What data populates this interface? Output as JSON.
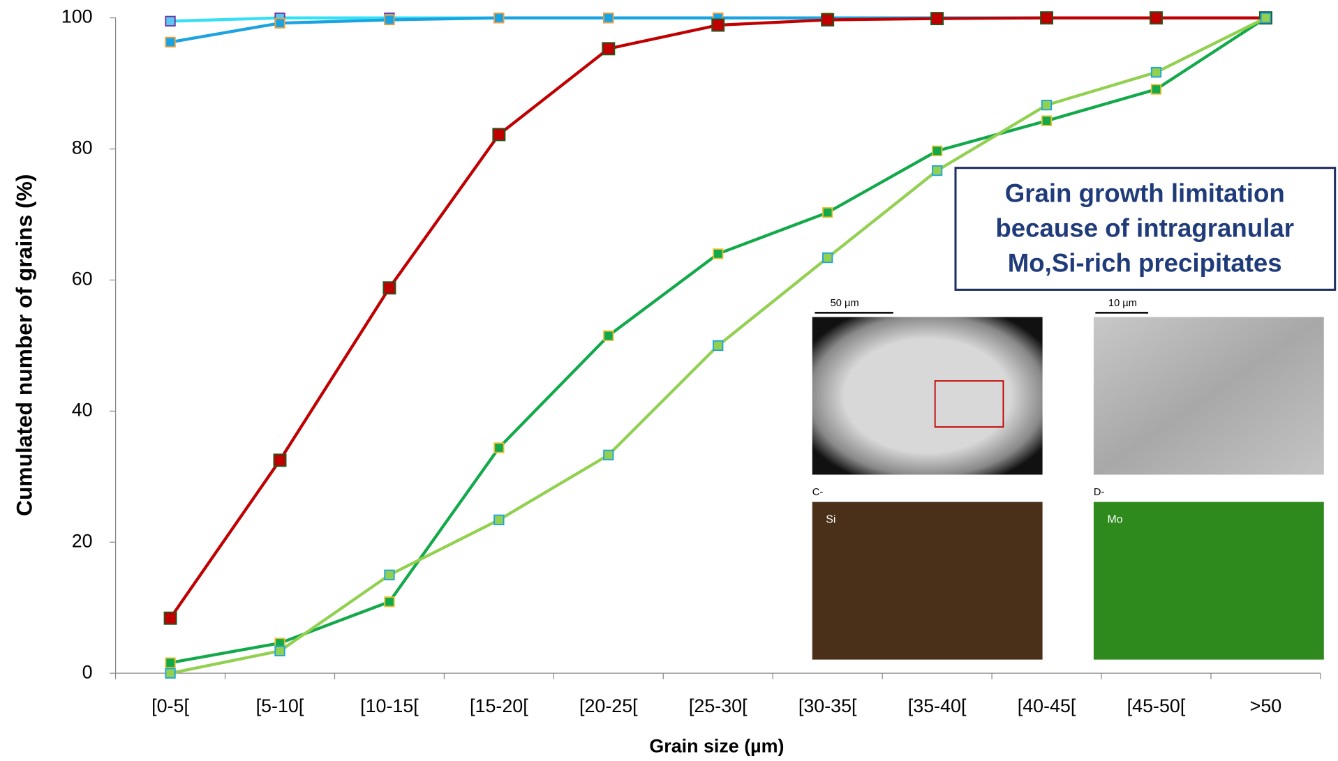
{
  "chart_data": {
    "type": "line",
    "x_label": "Grain size (µm)",
    "y_label": "Cumulated number of grains (%)",
    "categories": [
      "[0-5[",
      "[5-10[",
      "[10-15[",
      "[15-20[",
      "[20-25[",
      "[25-30[",
      "[30-35[",
      "[35-40[",
      "[40-45[",
      "[45-50[",
      ">50"
    ],
    "ylim": [
      0,
      100
    ],
    "yticks": [
      0,
      20,
      40,
      60,
      80,
      100
    ],
    "series": [
      {
        "color": "#33e0f5",
        "marker_color": "#5bc8f0",
        "marker_edge": "#7030a0",
        "values": [
          99.5,
          100,
          100,
          100,
          100,
          100,
          100,
          100,
          100,
          100,
          100
        ]
      },
      {
        "color": "#1aa3e0",
        "marker_color": "#1aa3e0",
        "marker_edge": "#e8a040",
        "values": [
          96.3,
          99.2,
          99.7,
          100,
          100,
          100,
          100,
          100,
          100,
          100,
          100
        ]
      },
      {
        "color": "#c00000",
        "marker_color": "#c00000",
        "marker_edge": "#1e5a20",
        "values": [
          8.4,
          32.5,
          58.8,
          82.2,
          95.3,
          98.9,
          99.7,
          99.9,
          100,
          100,
          100
        ]
      },
      {
        "color": "#12a94a",
        "marker_color": "#12a94a",
        "marker_edge": "#e8c030",
        "values": [
          1.6,
          4.6,
          10.9,
          34.4,
          51.5,
          64.0,
          70.3,
          79.7,
          84.3,
          89.1,
          100
        ]
      },
      {
        "color": "#92d050",
        "marker_color": "#92d050",
        "marker_edge": "#1aa3e0",
        "values": [
          0,
          3.4,
          15.0,
          23.4,
          33.3,
          50.0,
          63.4,
          76.7,
          86.7,
          91.7,
          100
        ]
      }
    ],
    "annotation": [
      "Grain growth limitation",
      "because of intragranular",
      "Mo,Si-rich precipitates"
    ],
    "insets": {
      "scale_a": "50 µm",
      "scale_b": "10 µm",
      "label_c": "C-",
      "label_d": "D-",
      "map_c": "Si",
      "map_d": "Mo"
    }
  }
}
